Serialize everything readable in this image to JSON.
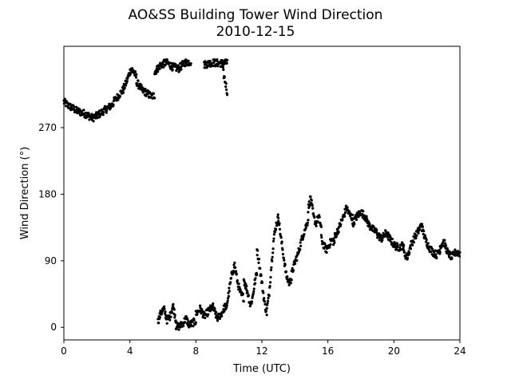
{
  "chart_data": {
    "type": "scatter",
    "title": "AO&SS Building Tower Wind Direction",
    "subtitle": "2010-12-15",
    "xlabel": "Time (UTC)",
    "ylabel": "Wind Direction (°)",
    "xlim": [
      0,
      24
    ],
    "ylim": [
      -17,
      380
    ],
    "xticks": [
      0,
      4,
      8,
      12,
      16,
      20,
      24
    ],
    "yticks": [
      0,
      90,
      180,
      270
    ],
    "grid": false,
    "legend": "none",
    "marker_color": "#000000",
    "series": [
      {
        "segments": [
          {
            "x0": 0.0,
            "x1": 1.5,
            "y": [
              305,
              300,
              297,
              293,
              291,
              289,
              286
            ]
          },
          {
            "x0": 1.5,
            "x1": 3.0,
            "y": [
              286,
              283,
              286,
              290,
              294,
              298,
              302
            ]
          },
          {
            "x0": 3.0,
            "x1": 3.6,
            "y": [
              305,
              310,
              316,
              321
            ]
          },
          {
            "x0": 3.6,
            "x1": 4.4,
            "y": [
              322,
              330,
              340,
              350,
              345,
              338
            ]
          },
          {
            "x0": 4.4,
            "x1": 5.5,
            "y": [
              332,
              326,
              320,
              318,
              315,
              312,
              314
            ]
          },
          {
            "x0": 5.5,
            "x1": 7.7,
            "y": [
              345,
              355,
              358,
              352,
              350,
              358,
              359
            ]
          },
          {
            "x0": 8.5,
            "x1": 9.9,
            "y": [
              355,
              358,
              357,
              358
            ]
          },
          {
            "x0": 9.6,
            "x1": 9.9,
            "y": [
              352,
              340,
              330,
              318
            ]
          },
          {
            "x0": 5.7,
            "x1": 6.8,
            "y": [
              8,
              20,
              25,
              10,
              15,
              30,
              8
            ]
          },
          {
            "x0": 6.8,
            "x1": 8.0,
            "y": [
              2,
              1,
              5,
              12,
              3,
              6,
              8
            ]
          },
          {
            "x0": 8.0,
            "x1": 9.8,
            "y": [
              18,
              25,
              15,
              22,
              28,
              12,
              18,
              30
            ]
          },
          {
            "x0": 9.8,
            "x1": 10.9,
            "y": [
              20,
              45,
              70,
              85,
              60,
              45,
              40
            ]
          },
          {
            "x0": 10.9,
            "x1": 11.7,
            "y": [
              65,
              55,
              45,
              30,
              40,
              60,
              75
            ]
          },
          {
            "x0": 11.7,
            "x1": 12.3,
            "y": [
              105,
              90,
              70,
              50,
              30,
              20
            ]
          },
          {
            "x0": 12.3,
            "x1": 13.0,
            "y": [
              25,
              45,
              85,
              120,
              138,
              150
            ]
          },
          {
            "x0": 13.0,
            "x1": 13.8,
            "y": [
              148,
              120,
              95,
              70,
              60,
              66
            ]
          },
          {
            "x0": 13.8,
            "x1": 14.8,
            "y": [
              72,
              88,
              100,
              118,
              132,
              145
            ]
          },
          {
            "x0": 14.8,
            "x1": 15.6,
            "y": [
              160,
              176,
              150,
              140,
              150,
              135
            ]
          },
          {
            "x0": 15.6,
            "x1": 16.4,
            "y": [
              120,
              110,
              105,
              112,
              118,
              115
            ]
          },
          {
            "x0": 16.4,
            "x1": 17.5,
            "y": [
              122,
              130,
              140,
              150,
              162,
              152,
              148
            ]
          },
          {
            "x0": 17.5,
            "x1": 19.0,
            "y": [
              140,
              150,
              156,
              150,
              138,
              132,
              128
            ]
          },
          {
            "x0": 19.0,
            "x1": 20.6,
            "y": [
              125,
              120,
              128,
              118,
              110,
              108,
              112
            ]
          },
          {
            "x0": 20.6,
            "x1": 21.7,
            "y": [
              100,
              95,
              112,
              122,
              130,
              140
            ]
          },
          {
            "x0": 21.7,
            "x1": 22.8,
            "y": [
              135,
              118,
              108,
              102,
              98,
              105
            ]
          },
          {
            "x0": 22.8,
            "x1": 24.0,
            "y": [
              110,
              115,
              100,
              95,
              102,
              100
            ]
          }
        ]
      }
    ]
  }
}
